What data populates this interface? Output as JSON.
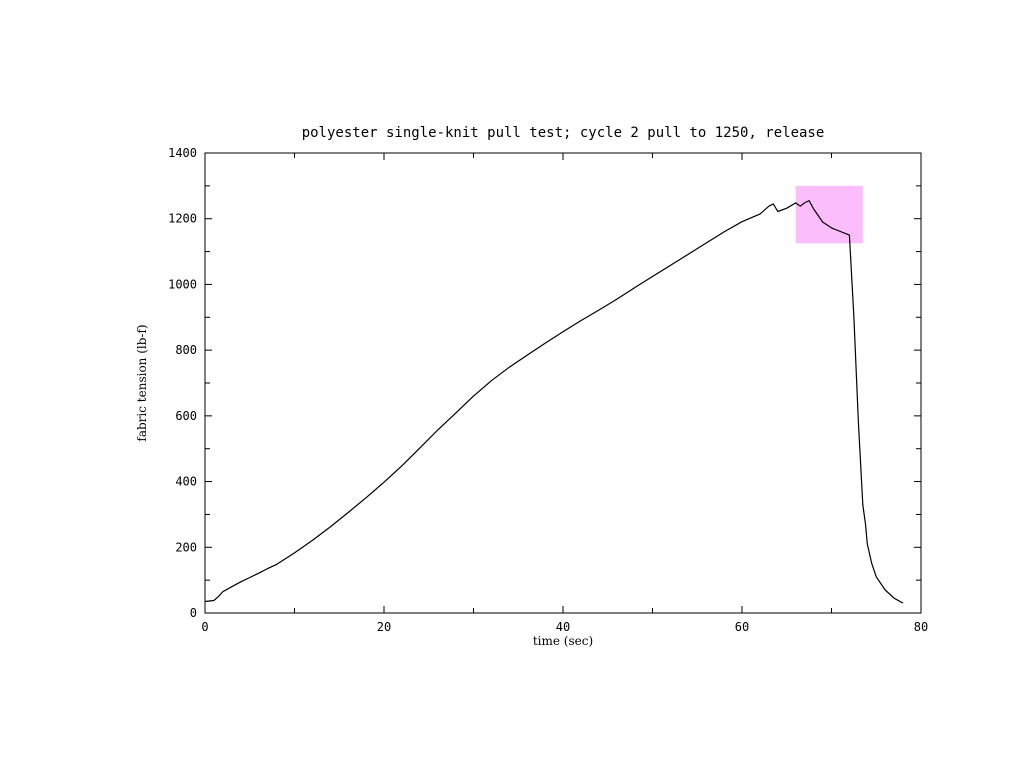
{
  "chart_data": {
    "type": "line",
    "title": "polyester single-knit pull test; cycle 2 pull to 1250, release",
    "xlabel": "time (sec)",
    "ylabel": "fabric tension (lb-f)",
    "xlim": [
      0,
      80
    ],
    "ylim": [
      0,
      1400
    ],
    "x_ticks": [
      0,
      20,
      40,
      60,
      80
    ],
    "x_tick_labels": [
      "0",
      "20",
      "40",
      "60",
      "80"
    ],
    "y_ticks": [
      0,
      200,
      400,
      600,
      800,
      1000,
      1200,
      1400
    ],
    "y_tick_labels": [
      "0",
      "200",
      "400",
      "600",
      "800",
      "1000",
      "1200",
      "1400"
    ],
    "grid": false,
    "series": [
      {
        "color": "#000000",
        "x": [
          0,
          1,
          1.5,
          2,
          3,
          4,
          5,
          6,
          7,
          8,
          10,
          12,
          14,
          16,
          18,
          20,
          22,
          24,
          26,
          28,
          30,
          32,
          34,
          36,
          38,
          40,
          42,
          44,
          46,
          48,
          50,
          52,
          54,
          56,
          58,
          60,
          62,
          63,
          63.5,
          64,
          65,
          66,
          66.5,
          67,
          67.5,
          68,
          69,
          70,
          71,
          72,
          72.5,
          73,
          73.5,
          73.8,
          74,
          74.5,
          75,
          76,
          77,
          78
        ],
        "y": [
          35,
          38,
          50,
          65,
          80,
          95,
          108,
          121,
          135,
          148,
          183,
          221,
          262,
          306,
          351,
          398,
          448,
          502,
          557,
          608,
          660,
          707,
          748,
          785,
          821,
          856,
          890,
          922,
          955,
          990,
          1024,
          1058,
          1092,
          1126,
          1160,
          1191,
          1214,
          1238,
          1245,
          1222,
          1232,
          1248,
          1238,
          1248,
          1255,
          1230,
          1190,
          1172,
          1161,
          1150,
          900,
          580,
          330,
          270,
          210,
          150,
          110,
          70,
          45,
          30
        ]
      }
    ],
    "highlight": {
      "x_range": [
        66,
        73.5
      ],
      "y_range": [
        1125,
        1300
      ],
      "color": "#fbbdfb"
    }
  }
}
